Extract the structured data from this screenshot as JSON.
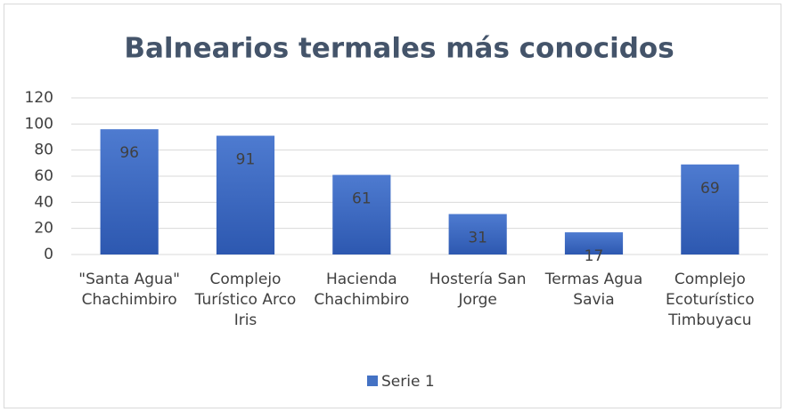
{
  "chart_data": {
    "type": "bar",
    "title": "Balnearios termales más conocidos",
    "categories": [
      "\"Santa Agua\" Chachimbiro",
      "Complejo Turístico Arco Iris",
      "Hacienda Chachimbiro",
      "Hostería San Jorge",
      "Termas Agua Savia",
      "Complejo Ecoturístico Timbuyacu"
    ],
    "series": [
      {
        "name": "Serie 1",
        "color": "#4472c4",
        "values": [
          96,
          91,
          61,
          31,
          17,
          69
        ]
      }
    ],
    "ylim": [
      0,
      120
    ],
    "yticks": [
      0,
      20,
      40,
      60,
      80,
      100,
      120
    ],
    "grid": true,
    "legend": "bottom"
  }
}
